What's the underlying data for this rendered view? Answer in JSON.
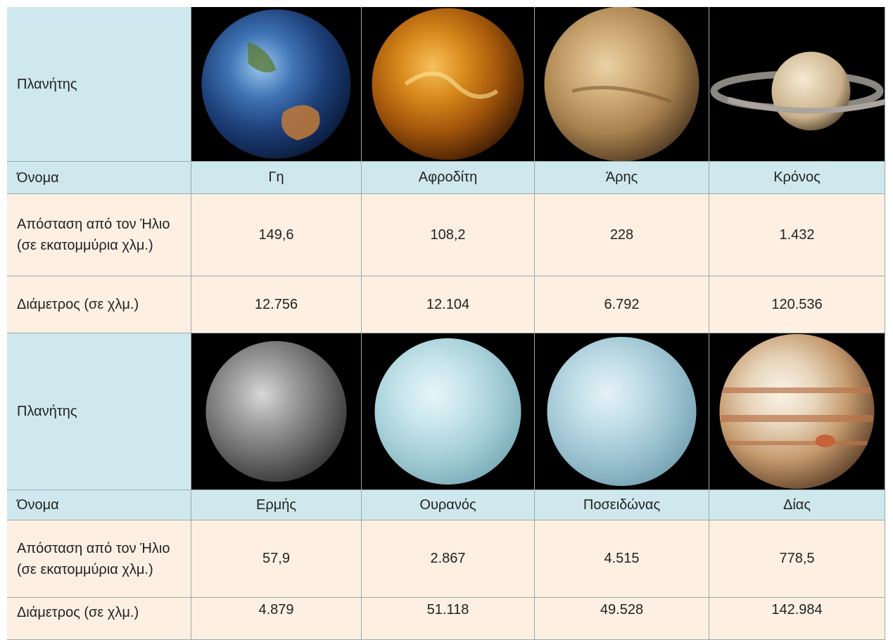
{
  "blocks": [
    {
      "header": {
        "planet": "Πλανήτης",
        "name": "Όνομα",
        "distance": "Απόσταση από τον Ήλιο (σε εκατομμύρια χλμ.)",
        "diameter": "Διάμετρος (σε χλμ.)"
      },
      "names": [
        "Γη",
        "Αφροδίτη",
        "Άρης",
        "Κρόνος"
      ],
      "distances": [
        "149,6",
        "108,2",
        "228",
        "1.432"
      ],
      "diameters": [
        "12.756",
        "12.104",
        "6.792",
        "120.536"
      ]
    },
    {
      "header": {
        "planet": "Πλανήτης",
        "name": "Όνομα",
        "distance": "Απόσταση από τον Ήλιο (σε εκατομμύρια χλμ.)",
        "diameter": "Διάμετρος (σε χλμ.)"
      },
      "names": [
        "Ερμής",
        "Ουρανός",
        "Ποσειδώνας",
        "Δίας"
      ],
      "distances": [
        "57,9",
        "2.867",
        "4.515",
        "778,5"
      ],
      "diameters": [
        "4.879",
        "51.118",
        "49.528",
        "142.984"
      ]
    }
  ]
}
